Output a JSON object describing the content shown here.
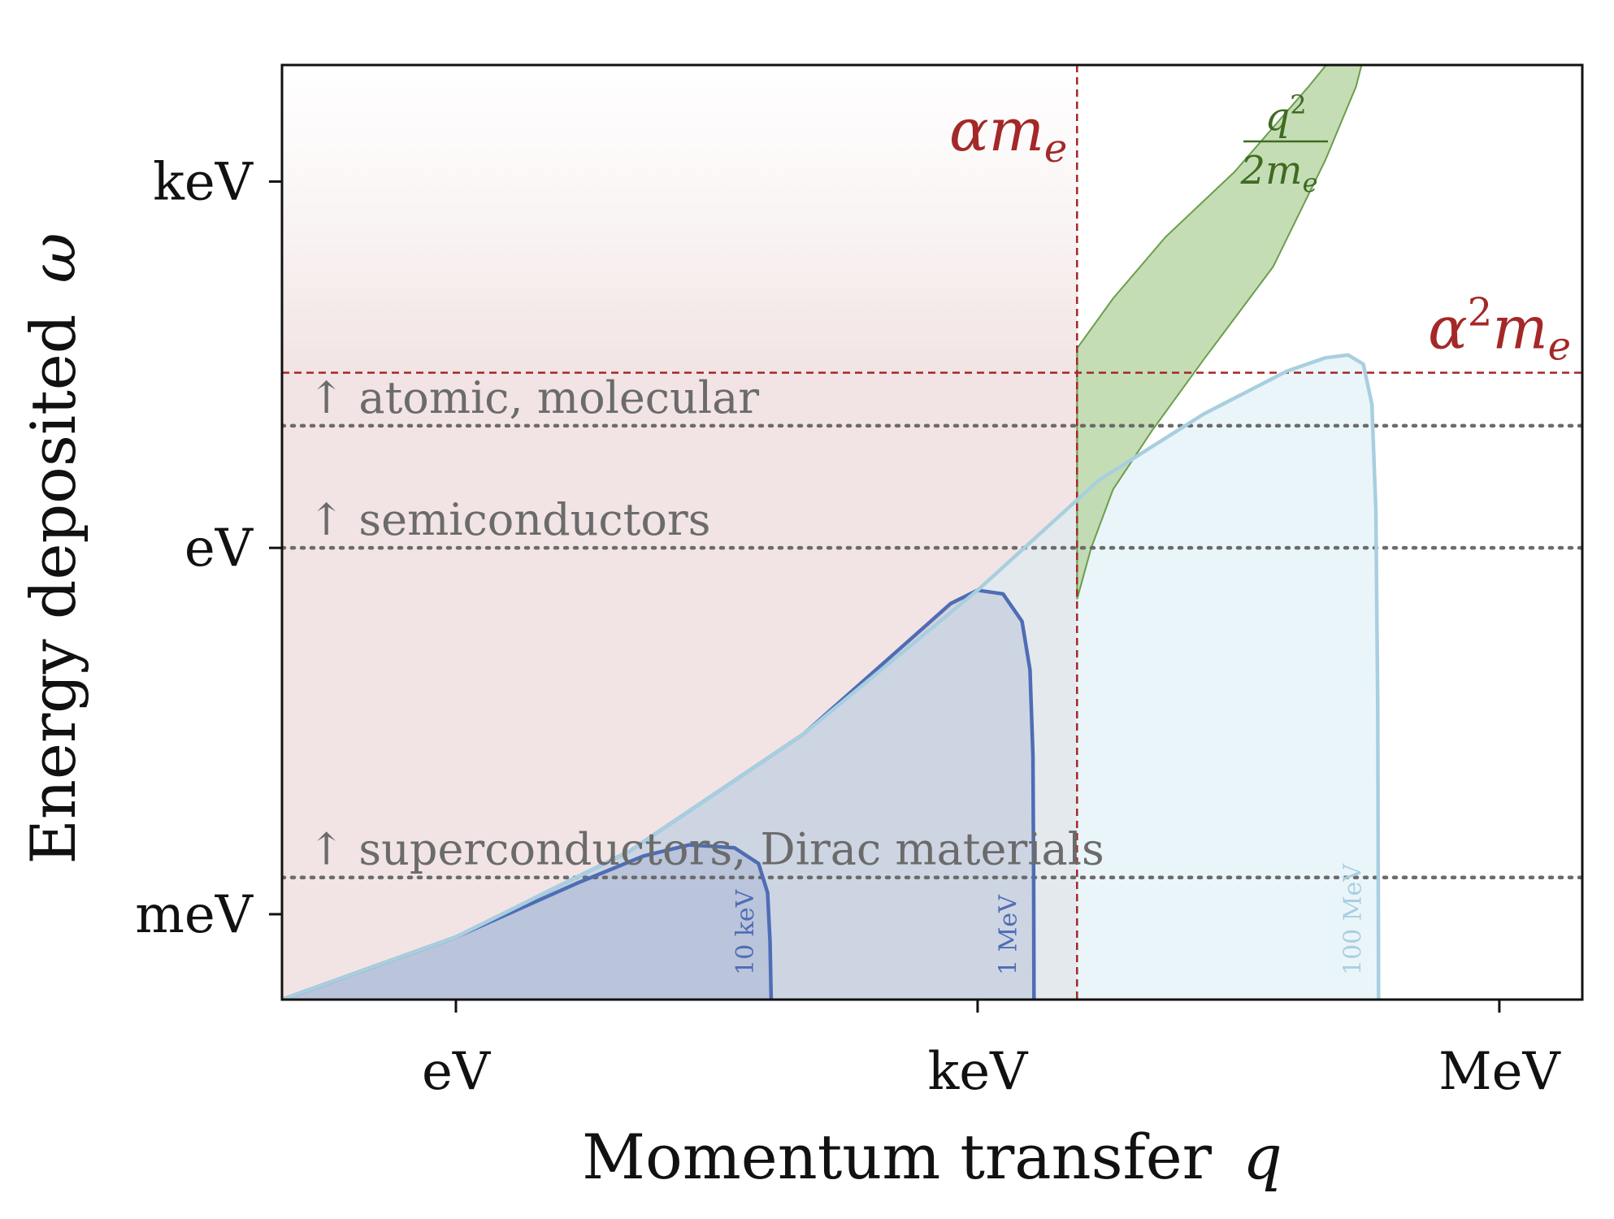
{
  "chart_data": {
    "type": "area",
    "x_scale": "log",
    "y_scale": "log",
    "x_unit": "eV",
    "y_unit": "eV",
    "xlim": [
      0.1,
      3000000
    ],
    "ylim": [
      0.0002,
      9000
    ],
    "xlabel": "Momentum transfer",
    "xlabel_symbol": "q",
    "ylabel": "Energy deposited",
    "ylabel_symbol": "ω",
    "x_ticks": [
      {
        "value": 1,
        "label": "eV"
      },
      {
        "value": 1000,
        "label": "keV"
      },
      {
        "value": 1000000,
        "label": "MeV"
      }
    ],
    "y_ticks": [
      {
        "value": 0.001,
        "label": "meV"
      },
      {
        "value": 1,
        "label": "eV"
      },
      {
        "value": 1000,
        "label": "keV"
      }
    ],
    "material_thresholds": [
      {
        "label": "↑ atomic, molecular",
        "omega": 10
      },
      {
        "label": "↑ semiconductors",
        "omega": 1
      },
      {
        "label": "↑ superconductors, Dirac materials",
        "omega": 0.002
      }
    ],
    "reference_lines": [
      {
        "label_base": "α",
        "label_sup": "",
        "label_sub": "m",
        "label_sub2": "e",
        "orientation": "vertical",
        "value": 3730,
        "color": "#a42828"
      },
      {
        "label_base": "α",
        "label_sup": "2",
        "label_sub": "m",
        "label_sub2": "e",
        "orientation": "horizontal",
        "value": 27.2,
        "color": "#a42828"
      }
    ],
    "free_electron_band": {
      "label_num": "q",
      "label_num_sup": "2",
      "label_den": "2m",
      "label_den_sub": "e",
      "color": "#6a9e4a",
      "upper": [
        [
          3730,
          43
        ],
        [
          6000,
          110
        ],
        [
          12000,
          350
        ],
        [
          30000,
          1200
        ],
        [
          80000,
          6000
        ],
        [
          119000,
          12000
        ]
      ],
      "lower": [
        [
          3730,
          0.38
        ],
        [
          4500,
          1.0
        ],
        [
          6000,
          3.0
        ],
        [
          10000,
          9.0
        ],
        [
          20000,
          35
        ],
        [
          50000,
          200
        ],
        [
          100000,
          1500
        ],
        [
          150000,
          6000
        ],
        [
          170000,
          12000
        ]
      ]
    },
    "series": [
      {
        "name": "10 keV",
        "color": "#4f6db5",
        "points": [
          [
            0.1,
            0.0002
          ],
          [
            1,
            0.00065
          ],
          [
            5,
            0.0018
          ],
          [
            12,
            0.003
          ],
          [
            22,
            0.0037
          ],
          [
            40,
            0.0035
          ],
          [
            55,
            0.0026
          ],
          [
            62,
            0.0015
          ],
          [
            64,
            0.0006
          ],
          [
            65,
            0.0002
          ]
        ]
      },
      {
        "name": "1 MeV",
        "color": "#4f6db5",
        "points": [
          [
            0.1,
            0.0002
          ],
          [
            1,
            0.00065
          ],
          [
            10,
            0.0033
          ],
          [
            100,
            0.03
          ],
          [
            300,
            0.12
          ],
          [
            700,
            0.35
          ],
          [
            1000,
            0.45
          ],
          [
            1400,
            0.42
          ],
          [
            1800,
            0.25
          ],
          [
            2000,
            0.1
          ],
          [
            2080,
            0.02
          ],
          [
            2100,
            0.002
          ],
          [
            2110,
            0.0002
          ]
        ]
      },
      {
        "name": "100 MeV",
        "color": "#a8cfe0",
        "points": [
          [
            0.1,
            0.0002
          ],
          [
            1,
            0.00065
          ],
          [
            10,
            0.0033
          ],
          [
            100,
            0.03
          ],
          [
            1000,
            0.45
          ],
          [
            5000,
            3.6
          ],
          [
            20000,
            12.5
          ],
          [
            60000,
            28
          ],
          [
            100000,
            36
          ],
          [
            135000,
            38
          ],
          [
            165000,
            32
          ],
          [
            185000,
            15
          ],
          [
            195000,
            2
          ],
          [
            200000,
            0.05
          ],
          [
            202000,
            0.0002
          ]
        ]
      }
    ],
    "legend": "none",
    "grid": false
  }
}
